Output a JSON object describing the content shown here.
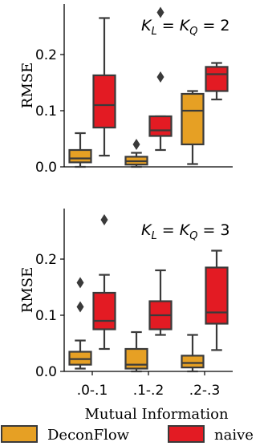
{
  "colors": {
    "DeconFlow": "#e6a024",
    "naive": "#e31b23",
    "stroke": "#3a3a3a"
  },
  "legend": {
    "placement": "bottom",
    "entries": [
      "DeconFlow",
      "naive"
    ]
  },
  "chart_data": [
    {
      "type": "box",
      "annotation": {
        "lhs": "K",
        "lhs_sub": "L",
        "mid": "K",
        "mid_sub": "Q",
        "rhs": " = 2"
      },
      "ylabel": "RMSE",
      "xlabel": "",
      "categories": [
        ".0-.1",
        ".1-.2",
        ".2-.3"
      ],
      "show_x_ticklabels": false,
      "ylim": [
        0,
        0.29
      ],
      "yticks": [
        "0.0",
        "0.1",
        "0.2"
      ],
      "series": [
        {
          "name": "DeconFlow",
          "boxes": [
            {
              "whislo": 0.0,
              "q1": 0.008,
              "med": 0.015,
              "q3": 0.03,
              "whishi": 0.06,
              "fliers": []
            },
            {
              "whislo": 0.0,
              "q1": 0.004,
              "med": 0.01,
              "q3": 0.018,
              "whishi": 0.025,
              "fliers": [
                0.04
              ]
            },
            {
              "whislo": 0.005,
              "q1": 0.04,
              "med": 0.1,
              "q3": 0.13,
              "whishi": 0.135,
              "fliers": []
            }
          ]
        },
        {
          "name": "naive",
          "boxes": [
            {
              "whislo": 0.02,
              "q1": 0.07,
              "med": 0.11,
              "q3": 0.163,
              "whishi": 0.265,
              "fliers": []
            },
            {
              "whislo": 0.03,
              "q1": 0.055,
              "med": 0.065,
              "q3": 0.09,
              "whishi": 0.09,
              "fliers": [
                0.16,
                0.275
              ]
            },
            {
              "whislo": 0.12,
              "q1": 0.135,
              "med": 0.165,
              "q3": 0.178,
              "whishi": 0.185,
              "fliers": []
            }
          ]
        }
      ]
    },
    {
      "type": "box",
      "annotation": {
        "lhs": "K",
        "lhs_sub": "L",
        "mid": "K",
        "mid_sub": "Q",
        "rhs": " = 3"
      },
      "ylabel": "RMSE",
      "xlabel": "Mutual Information",
      "categories": [
        ".0-.1",
        ".1-.2",
        ".2-.3"
      ],
      "show_x_ticklabels": true,
      "ylim": [
        0,
        0.29
      ],
      "yticks": [
        "0.0",
        "0.1",
        "0.2"
      ],
      "series": [
        {
          "name": "DeconFlow",
          "boxes": [
            {
              "whislo": 0.005,
              "q1": 0.012,
              "med": 0.022,
              "q3": 0.035,
              "whishi": 0.055,
              "fliers": [
                0.115,
                0.158
              ]
            },
            {
              "whislo": 0.0,
              "q1": 0.005,
              "med": 0.012,
              "q3": 0.04,
              "whishi": 0.07,
              "fliers": []
            },
            {
              "whislo": 0.0,
              "q1": 0.007,
              "med": 0.015,
              "q3": 0.028,
              "whishi": 0.065,
              "fliers": []
            }
          ]
        },
        {
          "name": "naive",
          "boxes": [
            {
              "whislo": 0.04,
              "q1": 0.075,
              "med": 0.09,
              "q3": 0.14,
              "whishi": 0.172,
              "fliers": [
                0.27
              ]
            },
            {
              "whislo": 0.065,
              "q1": 0.075,
              "med": 0.1,
              "q3": 0.125,
              "whishi": 0.18,
              "fliers": []
            },
            {
              "whislo": 0.038,
              "q1": 0.085,
              "med": 0.105,
              "q3": 0.185,
              "whishi": 0.215,
              "fliers": []
            }
          ]
        }
      ]
    }
  ]
}
